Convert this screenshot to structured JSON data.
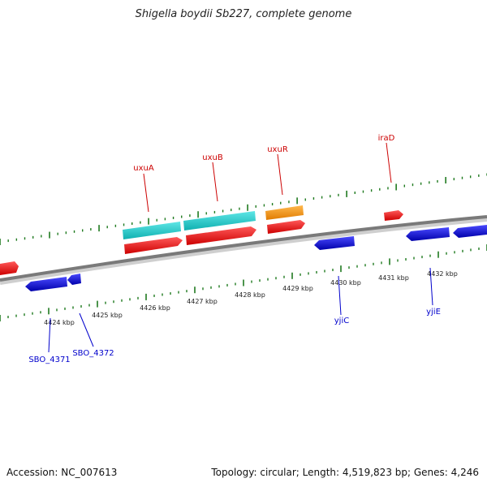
{
  "title": "Shigella boydii Sb227, complete genome",
  "footer": {
    "accession": "Accession: NC_007613",
    "stats": "Topology: circular; Length: 4,519,823 bp; Genes: 4,246"
  },
  "colors": {
    "backbone": "#7a7a7a",
    "tick": "#1f7a1f",
    "label_forward": "#cc0000",
    "label_reverse": "#0000cc",
    "gene_red": "#ee1111",
    "gene_cyan": "#11cccc",
    "gene_orange": "#ff9900",
    "gene_blue": "#1111dd"
  },
  "scale": {
    "unit": "kbp",
    "labels": [
      "4424 kbp",
      "4425 kbp",
      "4426 kbp",
      "4427 kbp",
      "4428 kbp",
      "4429 kbp",
      "4430 kbp",
      "4431 kbp",
      "4432 kbp"
    ]
  },
  "gene_labels": {
    "forward": [
      "uxuA",
      "uxuB",
      "uxuR",
      "iraD"
    ],
    "reverse": [
      "SBO_4371",
      "SBO_4372",
      "yjiC",
      "yjiE"
    ]
  }
}
